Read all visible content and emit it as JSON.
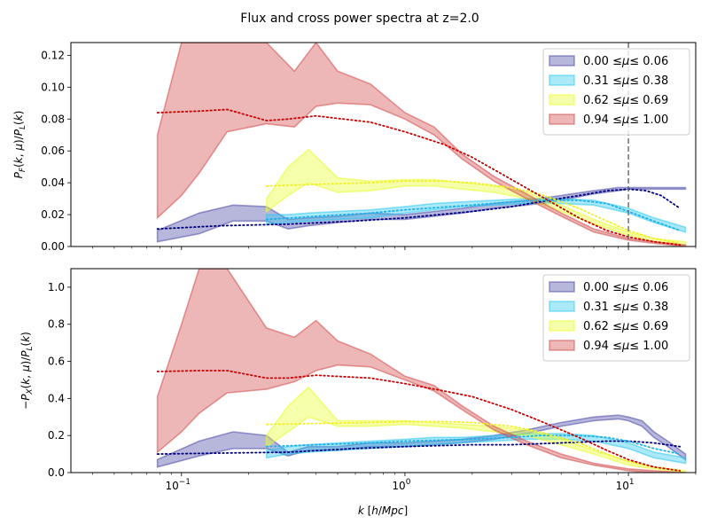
{
  "figure": {
    "title": "Flux and cross power spectra at z=2.0"
  },
  "colors": {
    "b0": "#4b4ba8",
    "b1": "#2ec8f0",
    "b2": "#e8ff2a",
    "b3": "#d24a4a",
    "d0": "#00007f",
    "d1": "#1fb0e8",
    "d2": "#f0f02a",
    "d3": "#cc0000"
  },
  "chart_data": [
    {
      "type": "area",
      "ylabel": "P_F(k, μ)/P_L(k)",
      "xscale": "log",
      "xlim": [
        0.032,
        20
      ],
      "ylim": [
        0,
        0.128
      ],
      "grid": false,
      "legend_placement": "top-right",
      "yticks": [
        "0.00",
        "0.02",
        "0.04",
        "0.06",
        "0.08",
        "0.10",
        "0.12"
      ],
      "xticks": [
        "10^-1",
        "10^0",
        "10^1"
      ],
      "vline_x": 10,
      "series": [
        {
          "name": "0.00 ≤μ≤ 0.06",
          "band_x": [
            0.078,
            0.12,
            0.17,
            0.24,
            0.3,
            0.37,
            0.5,
            0.7,
            1.0,
            1.35,
            1.8,
            2.5,
            3.5,
            5,
            7,
            9,
            10,
            11.5,
            13,
            18
          ],
          "upper": [
            0.01,
            0.021,
            0.026,
            0.025,
            0.017,
            0.018,
            0.019,
            0.021,
            0.02,
            0.022,
            0.024,
            0.027,
            0.029,
            0.032,
            0.035,
            0.037,
            0.037,
            0.037,
            0.037,
            0.037
          ],
          "lower": [
            0.003,
            0.008,
            0.016,
            0.016,
            0.011,
            0.013,
            0.015,
            0.017,
            0.017,
            0.019,
            0.021,
            0.024,
            0.026,
            0.029,
            0.033,
            0.035,
            0.036,
            0.036,
            0.036,
            0.036
          ],
          "model_x": [
            0.078,
            0.15,
            0.3,
            0.6,
            1,
            2,
            3,
            4,
            6,
            8,
            10,
            12,
            14,
            17
          ],
          "model": [
            0.011,
            0.013,
            0.014,
            0.016,
            0.018,
            0.022,
            0.025,
            0.028,
            0.032,
            0.035,
            0.036,
            0.035,
            0.032,
            0.024
          ]
        },
        {
          "name": "0.31 ≤μ≤ 0.38",
          "band_x": [
            0.24,
            0.3,
            0.37,
            0.5,
            0.7,
            1.0,
            1.35,
            1.8,
            2.5,
            3.5,
            5,
            7,
            10,
            13,
            18
          ],
          "upper": [
            0.02,
            0.02,
            0.021,
            0.022,
            0.023,
            0.025,
            0.027,
            0.028,
            0.029,
            0.03,
            0.03,
            0.029,
            0.024,
            0.018,
            0.012
          ],
          "lower": [
            0.014,
            0.015,
            0.016,
            0.017,
            0.018,
            0.021,
            0.023,
            0.025,
            0.026,
            0.027,
            0.027,
            0.026,
            0.021,
            0.015,
            0.009
          ],
          "model_x": [
            0.24,
            0.4,
            0.7,
            1,
            2,
            3,
            4,
            6,
            8,
            10,
            13,
            17
          ],
          "model": [
            0.017,
            0.019,
            0.021,
            0.023,
            0.026,
            0.028,
            0.029,
            0.029,
            0.027,
            0.022,
            0.016,
            0.01
          ]
        },
        {
          "name": "0.62 ≤μ≤ 0.69",
          "band_x": [
            0.24,
            0.3,
            0.37,
            0.5,
            0.7,
            1.0,
            1.35,
            1.8,
            2.5,
            3.5,
            5,
            7,
            10,
            13,
            18
          ],
          "upper": [
            0.03,
            0.05,
            0.061,
            0.043,
            0.041,
            0.042,
            0.042,
            0.04,
            0.038,
            0.034,
            0.026,
            0.017,
            0.009,
            0.005,
            0.003
          ],
          "lower": [
            0.022,
            0.032,
            0.04,
            0.034,
            0.035,
            0.038,
            0.038,
            0.036,
            0.034,
            0.03,
            0.022,
            0.014,
            0.007,
            0.003,
            0.001
          ],
          "model_x": [
            0.24,
            0.4,
            0.7,
            1,
            1.5,
            2,
            3,
            4,
            6,
            8,
            10,
            13,
            17
          ],
          "model": [
            0.038,
            0.039,
            0.04,
            0.041,
            0.041,
            0.04,
            0.037,
            0.033,
            0.024,
            0.016,
            0.01,
            0.005,
            0.002
          ]
        },
        {
          "name": "0.94 ≤μ≤ 1.00",
          "band_x": [
            0.078,
            0.1,
            0.12,
            0.16,
            0.24,
            0.32,
            0.4,
            0.5,
            0.7,
            1.0,
            1.35,
            1.8,
            2.5,
            3.5,
            5,
            7,
            10,
            13,
            18
          ],
          "upper": [
            0.07,
            0.128,
            0.128,
            0.128,
            0.128,
            0.11,
            0.128,
            0.11,
            0.102,
            0.084,
            0.075,
            0.058,
            0.044,
            0.033,
            0.021,
            0.011,
            0.005,
            0.003,
            0.001
          ],
          "lower": [
            0.018,
            0.032,
            0.046,
            0.072,
            0.077,
            0.075,
            0.088,
            0.09,
            0.089,
            0.08,
            0.07,
            0.055,
            0.041,
            0.03,
            0.019,
            0.009,
            0.004,
            0.002,
            0.0
          ],
          "model_x": [
            0.078,
            0.12,
            0.16,
            0.24,
            0.3,
            0.4,
            0.7,
            1.0,
            1.5,
            2,
            3,
            4,
            6,
            8,
            10,
            13,
            17
          ],
          "model": [
            0.084,
            0.085,
            0.086,
            0.079,
            0.08,
            0.082,
            0.078,
            0.072,
            0.064,
            0.056,
            0.042,
            0.032,
            0.018,
            0.01,
            0.006,
            0.003,
            0.001
          ]
        }
      ]
    },
    {
      "type": "area",
      "xlabel": "k [h/Mpc]",
      "ylabel": "−P_X(k, μ)/P_L(k)",
      "xscale": "log",
      "xlim": [
        0.032,
        20
      ],
      "ylim": [
        0,
        1.1
      ],
      "grid": false,
      "legend_placement": "top-right",
      "yticks": [
        "0.0",
        "0.2",
        "0.4",
        "0.6",
        "0.8",
        "1.0"
      ],
      "xticks": [
        "10^-1",
        "10^0",
        "10^1"
      ],
      "series": [
        {
          "name": "0.00 ≤μ≤ 0.06",
          "band_x": [
            0.078,
            0.12,
            0.17,
            0.24,
            0.3,
            0.37,
            0.5,
            0.7,
            1.0,
            1.35,
            1.8,
            2.5,
            3.5,
            5,
            7,
            9,
            10,
            11.5,
            13,
            15,
            18
          ],
          "upper": [
            0.07,
            0.17,
            0.22,
            0.2,
            0.11,
            0.14,
            0.14,
            0.16,
            0.16,
            0.17,
            0.18,
            0.2,
            0.23,
            0.27,
            0.3,
            0.31,
            0.3,
            0.28,
            0.22,
            0.17,
            0.1
          ],
          "lower": [
            0.03,
            0.09,
            0.13,
            0.13,
            0.09,
            0.12,
            0.12,
            0.14,
            0.14,
            0.15,
            0.16,
            0.18,
            0.21,
            0.25,
            0.28,
            0.29,
            0.28,
            0.25,
            0.19,
            0.14,
            0.07
          ],
          "model_x": [
            0.078,
            0.15,
            0.3,
            0.6,
            1,
            2,
            3,
            5,
            8,
            10,
            13,
            17
          ],
          "model": [
            0.1,
            0.105,
            0.11,
            0.13,
            0.14,
            0.15,
            0.15,
            0.16,
            0.17,
            0.17,
            0.16,
            0.14
          ]
        },
        {
          "name": "0.31 ≤μ≤ 0.38",
          "band_x": [
            0.24,
            0.3,
            0.37,
            0.5,
            0.7,
            1.0,
            1.35,
            1.8,
            2.5,
            3.5,
            5,
            7,
            10,
            13,
            18
          ],
          "upper": [
            0.12,
            0.14,
            0.15,
            0.16,
            0.17,
            0.18,
            0.19,
            0.19,
            0.2,
            0.21,
            0.21,
            0.2,
            0.16,
            0.11,
            0.08
          ],
          "lower": [
            0.08,
            0.1,
            0.11,
            0.12,
            0.13,
            0.14,
            0.15,
            0.16,
            0.17,
            0.18,
            0.18,
            0.17,
            0.13,
            0.08,
            0.05
          ],
          "model_x": [
            0.24,
            0.4,
            0.7,
            1,
            2,
            3,
            4,
            6,
            8,
            10,
            13,
            17
          ],
          "model": [
            0.14,
            0.15,
            0.16,
            0.17,
            0.18,
            0.19,
            0.2,
            0.2,
            0.19,
            0.17,
            0.13,
            0.1
          ]
        },
        {
          "name": "0.62 ≤μ≤ 0.69",
          "band_x": [
            0.24,
            0.3,
            0.37,
            0.5,
            0.7,
            1.0,
            1.35,
            1.8,
            2.5,
            3.5,
            5,
            7,
            10,
            13,
            18
          ],
          "upper": [
            0.2,
            0.36,
            0.46,
            0.28,
            0.28,
            0.28,
            0.27,
            0.26,
            0.25,
            0.23,
            0.18,
            0.12,
            0.06,
            0.03,
            0.01
          ],
          "lower": [
            0.14,
            0.22,
            0.3,
            0.25,
            0.25,
            0.26,
            0.25,
            0.24,
            0.22,
            0.2,
            0.15,
            0.1,
            0.04,
            0.02,
            0.0
          ],
          "model_x": [
            0.24,
            0.4,
            0.7,
            1,
            1.5,
            2,
            3,
            4,
            6,
            8,
            10,
            13,
            17
          ],
          "model": [
            0.26,
            0.265,
            0.27,
            0.275,
            0.275,
            0.27,
            0.25,
            0.22,
            0.16,
            0.1,
            0.06,
            0.03,
            0.01
          ]
        },
        {
          "name": "0.94 ≤μ≤ 1.00",
          "band_x": [
            0.078,
            0.1,
            0.12,
            0.16,
            0.24,
            0.32,
            0.4,
            0.5,
            0.7,
            1.0,
            1.35,
            1.8,
            2.5,
            3.5,
            5,
            7,
            10,
            13,
            18
          ],
          "upper": [
            0.41,
            0.8,
            1.1,
            1.1,
            0.78,
            0.73,
            0.82,
            0.71,
            0.64,
            0.52,
            0.47,
            0.36,
            0.25,
            0.17,
            0.1,
            0.05,
            0.02,
            0.01,
            0.0
          ],
          "lower": [
            0.11,
            0.22,
            0.32,
            0.43,
            0.45,
            0.49,
            0.55,
            0.58,
            0.57,
            0.5,
            0.44,
            0.34,
            0.23,
            0.15,
            0.08,
            0.04,
            0.01,
            0.0,
            0.0
          ],
          "model_x": [
            0.078,
            0.12,
            0.16,
            0.24,
            0.3,
            0.4,
            0.7,
            1.0,
            1.5,
            2,
            3,
            4,
            6,
            8,
            10,
            13,
            17
          ],
          "model": [
            0.545,
            0.55,
            0.55,
            0.51,
            0.51,
            0.525,
            0.51,
            0.48,
            0.44,
            0.41,
            0.34,
            0.28,
            0.19,
            0.12,
            0.07,
            0.03,
            0.01
          ]
        }
      ]
    }
  ]
}
